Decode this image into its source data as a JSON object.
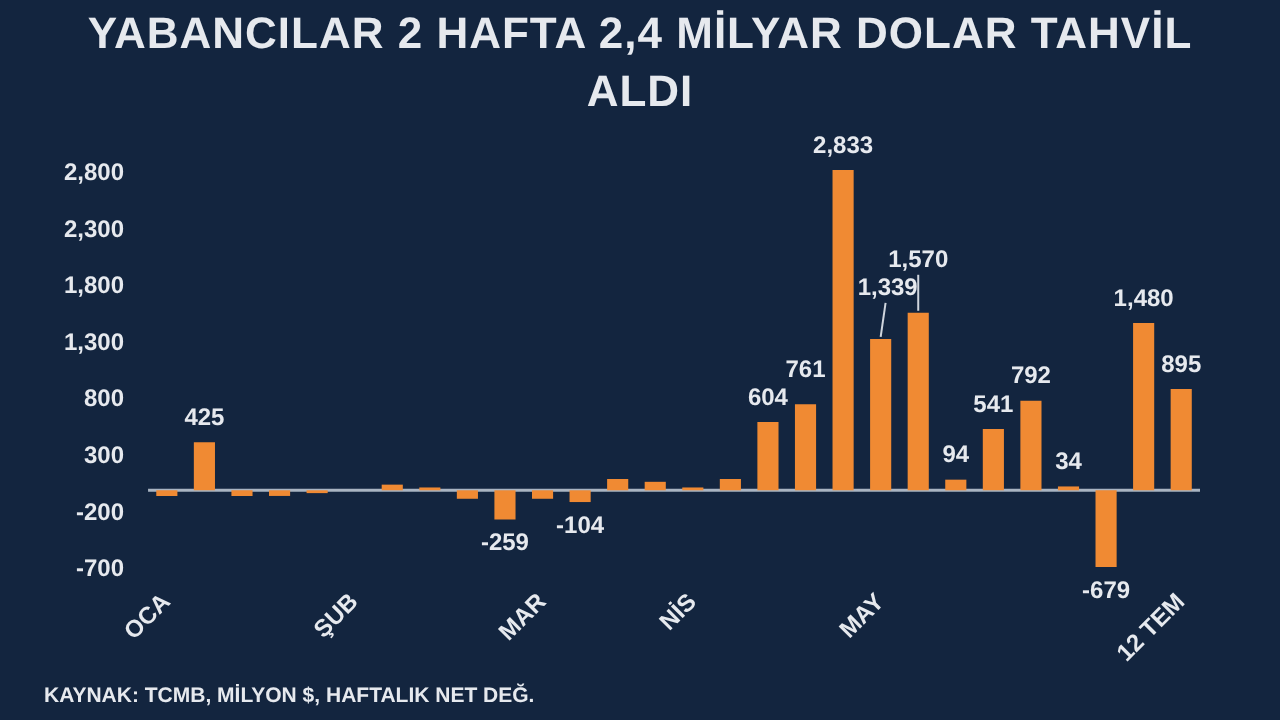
{
  "chart_data": {
    "type": "bar",
    "title": "YABANCILAR 2 HAFTA 2,4 MİLYAR DOLAR TAHVİL ALDI",
    "categories": [
      "OCA",
      null,
      null,
      null,
      null,
      "ŞUB",
      null,
      null,
      null,
      null,
      "MAR",
      null,
      null,
      null,
      "NİS",
      null,
      null,
      null,
      null,
      "MAY",
      null,
      null,
      null,
      null,
      null,
      null,
      null,
      "12 TEM"
    ],
    "values": [
      -50,
      425,
      -50,
      -50,
      -25,
      0,
      50,
      25,
      -75,
      -259,
      -75,
      -104,
      100,
      75,
      25,
      100,
      604,
      761,
      2833,
      1339,
      1570,
      94,
      541,
      792,
      34,
      -679,
      1480,
      895
    ],
    "value_labels": [
      null,
      "425",
      null,
      null,
      null,
      null,
      null,
      null,
      null,
      "-259",
      null,
      "-104",
      null,
      null,
      null,
      null,
      "604",
      "761",
      "2,833",
      "1,339",
      "1,570",
      "94",
      "541",
      "792",
      "34",
      "-679",
      "1,480",
      "895"
    ],
    "color": "#f08a33",
    "ylim": [
      -760,
      2900
    ],
    "yticks": [
      {
        "value": -700,
        "label": "-700"
      },
      {
        "value": -200,
        "label": "-200"
      },
      {
        "value": 300,
        "label": "300"
      },
      {
        "value": 800,
        "label": "800"
      },
      {
        "value": 1300,
        "label": "1,300"
      },
      {
        "value": 1800,
        "label": "1,800"
      },
      {
        "value": 2300,
        "label": "2,300"
      },
      {
        "value": 2800,
        "label": "2,800"
      }
    ],
    "ref_lines": [
      {
        "axis": "y",
        "value": 0,
        "color": "#a9b4c2"
      }
    ],
    "grid": false,
    "legend": false,
    "annotations": [
      "KAYNAK: TCMB, MİLYON $, HAFTALIK NET DEĞ."
    ]
  }
}
